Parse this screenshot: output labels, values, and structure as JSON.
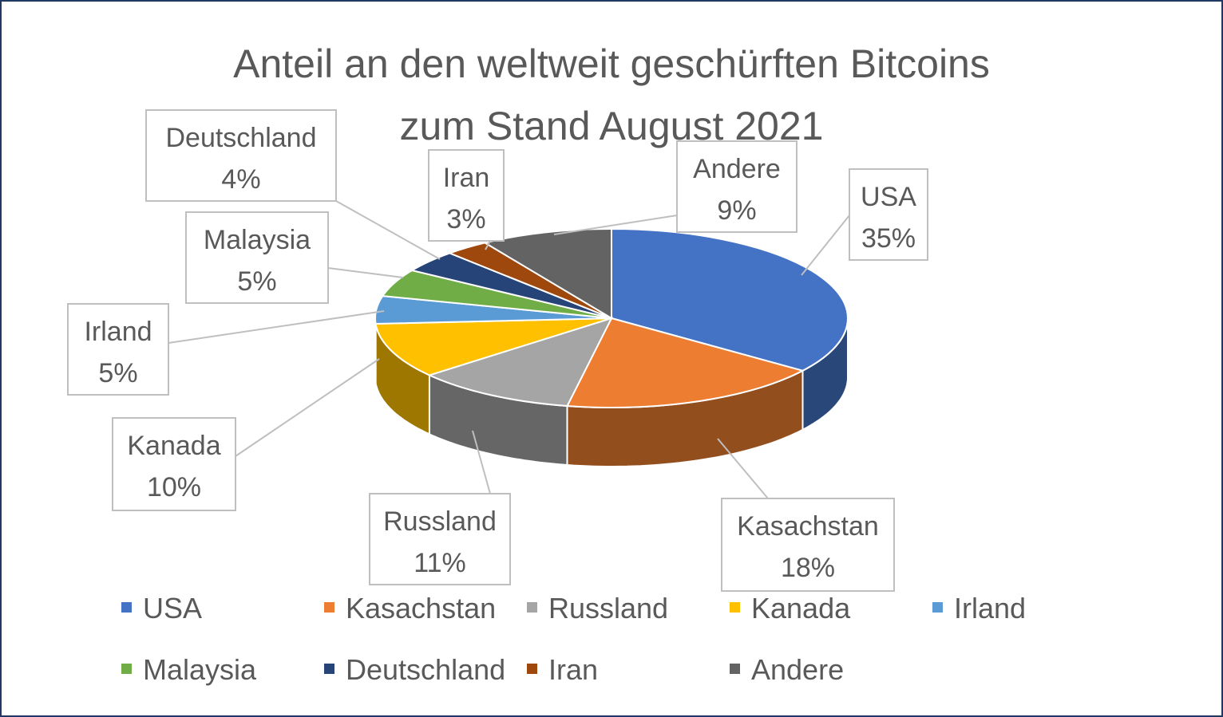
{
  "chart_data": {
    "type": "pie",
    "title_lines": [
      "Anteil an den weltweit geschürften Bitcoins",
      "zum Stand August 2021"
    ],
    "categories": [
      "USA",
      "Kasachstan",
      "Russland",
      "Kanada",
      "Irland",
      "Malaysia",
      "Deutschland",
      "Iran",
      "Andere"
    ],
    "values": [
      35,
      18,
      11,
      10,
      5,
      5,
      4,
      3,
      9
    ],
    "value_labels": [
      "35%",
      "18%",
      "11%",
      "10%",
      "5%",
      "5%",
      "4%",
      "3%",
      "9%"
    ],
    "colors": [
      "#4472c4",
      "#ed7d31",
      "#a5a5a5",
      "#ffc000",
      "#5b9bd5",
      "#70ad47",
      "#264478",
      "#9e480e",
      "#636363"
    ],
    "three_d": true,
    "legend_position": "bottom"
  }
}
